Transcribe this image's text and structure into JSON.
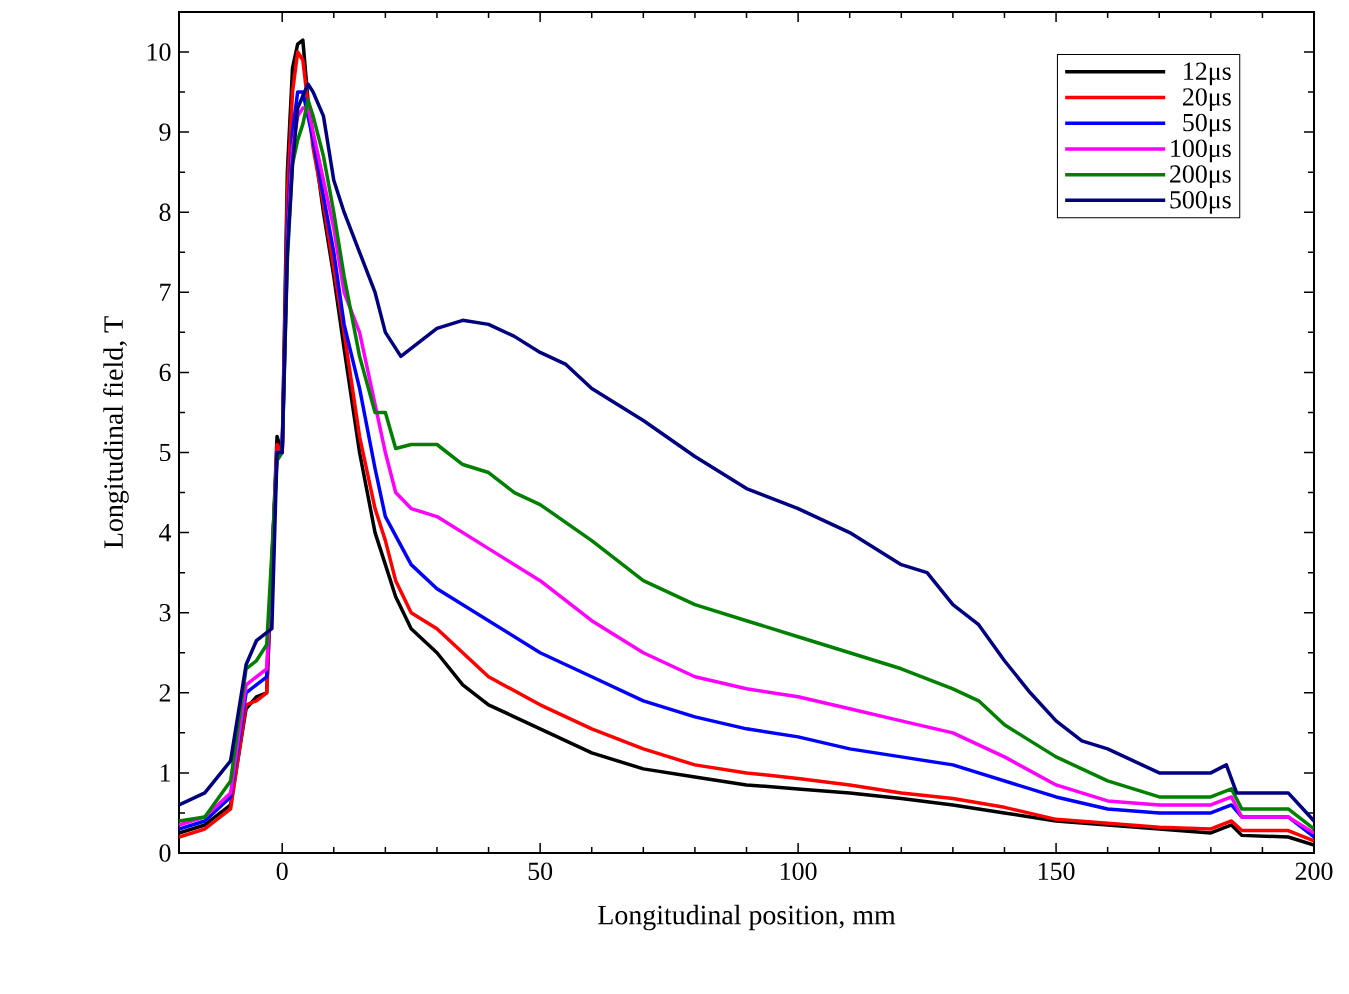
{
  "chart_data": {
    "type": "line",
    "xlabel": "Longitudinal position,  mm",
    "ylabel": "Longitudinal field,  T",
    "xlim": [
      -20,
      200
    ],
    "ylim": [
      0,
      10.5
    ],
    "xticks": [
      0,
      50,
      100,
      150,
      200
    ],
    "yticks": [
      0,
      1,
      2,
      3,
      4,
      5,
      6,
      7,
      8,
      9,
      10
    ],
    "legend": "top right",
    "grid": false,
    "marker": "none",
    "line_style": "solid",
    "series": [
      {
        "name": "12μs",
        "color": "#000000",
        "x": [
          -20,
          -15,
          -10,
          -7,
          -5,
          -3,
          -1,
          0,
          1,
          2,
          3,
          4,
          5,
          6,
          8,
          10,
          12,
          15,
          18,
          20,
          22,
          25,
          30,
          35,
          40,
          45,
          50,
          60,
          70,
          80,
          90,
          100,
          110,
          120,
          130,
          140,
          150,
          160,
          170,
          180,
          184,
          186,
          195,
          200
        ],
        "values": [
          0.25,
          0.35,
          0.6,
          1.8,
          1.95,
          2.0,
          5.2,
          5.0,
          8.5,
          9.8,
          10.1,
          10.15,
          9.4,
          null,
          8.0,
          7.2,
          6.3,
          5.0,
          4.0,
          3.6,
          3.2,
          2.8,
          2.5,
          2.1,
          1.85,
          1.7,
          1.55,
          1.25,
          1.05,
          0.95,
          0.85,
          0.8,
          0.75,
          0.68,
          0.6,
          0.5,
          0.4,
          0.35,
          0.3,
          0.25,
          0.35,
          0.22,
          0.2,
          0.1
        ]
      },
      {
        "name": "20μs",
        "color": "#ff0000",
        "x": [
          -20,
          -15,
          -10,
          -7,
          -5,
          -3,
          -1,
          0,
          1,
          2,
          3,
          4,
          5,
          6,
          8,
          10,
          12,
          15,
          18,
          20,
          22,
          25,
          30,
          40,
          50,
          60,
          70,
          80,
          90,
          100,
          110,
          120,
          130,
          140,
          150,
          160,
          170,
          180,
          184,
          186,
          195,
          200
        ],
        "values": [
          0.2,
          0.3,
          0.55,
          1.85,
          1.9,
          2.0,
          5.1,
          5.0,
          8.2,
          9.5,
          10.0,
          9.9,
          null,
          8.8,
          8.1,
          7.3,
          6.5,
          5.2,
          4.3,
          3.9,
          3.4,
          3.0,
          2.8,
          2.2,
          1.85,
          1.55,
          1.3,
          1.1,
          1.0,
          0.93,
          0.85,
          0.75,
          0.68,
          0.57,
          0.42,
          0.37,
          0.32,
          0.3,
          0.4,
          0.28,
          0.28,
          0.15
        ]
      },
      {
        "name": "50μs",
        "color": "#0000ff",
        "x": [
          -20,
          -15,
          -10,
          -7,
          -5,
          -3,
          -1,
          0,
          1,
          2,
          3,
          4,
          5,
          6,
          8,
          10,
          12,
          15,
          18,
          20,
          25,
          30,
          40,
          50,
          60,
          70,
          80,
          90,
          100,
          110,
          120,
          130,
          140,
          150,
          160,
          170,
          180,
          184,
          186,
          195,
          200
        ],
        "values": [
          0.3,
          0.4,
          0.7,
          2.0,
          2.1,
          2.2,
          5.0,
          5.0,
          7.8,
          9.0,
          9.5,
          9.5,
          null,
          8.9,
          8.2,
          7.5,
          6.6,
          5.8,
          4.8,
          4.2,
          3.6,
          3.3,
          2.9,
          2.5,
          2.2,
          1.9,
          1.7,
          1.55,
          1.45,
          1.3,
          1.2,
          1.1,
          0.9,
          0.7,
          0.55,
          0.5,
          0.5,
          0.6,
          0.45,
          0.45,
          0.2
        ]
      },
      {
        "name": "100μs",
        "color": "#ff00ff",
        "x": [
          -20,
          -15,
          -10,
          -7,
          -5,
          -3,
          -1,
          0,
          1,
          2,
          3,
          4,
          5,
          6,
          8,
          10,
          12,
          15,
          18,
          20,
          22,
          25,
          30,
          40,
          50,
          60,
          70,
          80,
          90,
          100,
          110,
          120,
          130,
          140,
          150,
          160,
          170,
          180,
          184,
          186,
          195,
          200
        ],
        "values": [
          0.35,
          0.45,
          0.75,
          2.1,
          2.2,
          2.3,
          5.0,
          5.0,
          7.6,
          8.8,
          9.2,
          9.3,
          9.3,
          9.0,
          8.4,
          7.8,
          7.0,
          6.5,
          5.6,
          5.0,
          4.5,
          4.3,
          4.2,
          3.8,
          3.4,
          2.9,
          2.5,
          2.2,
          2.05,
          1.95,
          1.8,
          1.65,
          1.5,
          1.2,
          0.85,
          0.65,
          0.6,
          0.6,
          0.7,
          0.45,
          0.45,
          0.25
        ]
      },
      {
        "name": "200μs",
        "color": "#008000",
        "x": [
          -20,
          -15,
          -10,
          -7,
          -5,
          -3,
          -1,
          0,
          1,
          2,
          3,
          4,
          5,
          6,
          8,
          10,
          12,
          15,
          18,
          20,
          22,
          25,
          30,
          35,
          40,
          45,
          50,
          60,
          70,
          80,
          90,
          100,
          110,
          120,
          130,
          135,
          140,
          145,
          150,
          160,
          170,
          180,
          184,
          186,
          195,
          200
        ],
        "values": [
          0.4,
          0.45,
          0.9,
          2.3,
          2.4,
          2.6,
          4.9,
          5.0,
          7.4,
          8.6,
          8.9,
          9.1,
          9.4,
          9.2,
          8.7,
          8.0,
          7.2,
          6.2,
          5.5,
          5.5,
          5.05,
          5.1,
          5.1,
          4.85,
          4.75,
          4.5,
          4.35,
          3.9,
          3.4,
          3.1,
          2.9,
          2.7,
          2.5,
          2.3,
          2.05,
          1.9,
          1.6,
          1.4,
          1.2,
          0.9,
          0.7,
          0.7,
          0.8,
          0.55,
          0.55,
          0.3
        ]
      },
      {
        "name": "500μs",
        "color": "#000080",
        "x": [
          -20,
          -15,
          -10,
          -7,
          -5,
          -3,
          -2,
          -1,
          0,
          1,
          2,
          3,
          5,
          6,
          8,
          10,
          12,
          15,
          18,
          20,
          23,
          25,
          30,
          35,
          40,
          45,
          50,
          55,
          60,
          70,
          80,
          90,
          100,
          110,
          120,
          125,
          130,
          135,
          140,
          145,
          150,
          155,
          160,
          170,
          180,
          183,
          185,
          195,
          200
        ],
        "values": [
          0.6,
          0.75,
          1.15,
          2.35,
          2.65,
          2.75,
          2.8,
          5.0,
          5.0,
          7.5,
          8.6,
          9.3,
          9.6,
          9.5,
          9.2,
          8.4,
          8.0,
          7.5,
          7.0,
          6.5,
          6.2,
          6.3,
          6.55,
          6.65,
          6.6,
          6.45,
          6.25,
          6.1,
          5.8,
          5.4,
          4.95,
          4.55,
          4.3,
          4.0,
          3.6,
          3.5,
          3.1,
          2.85,
          2.4,
          2.0,
          1.65,
          1.4,
          1.3,
          1.0,
          1.0,
          1.1,
          0.75,
          0.75,
          0.4
        ]
      }
    ]
  }
}
